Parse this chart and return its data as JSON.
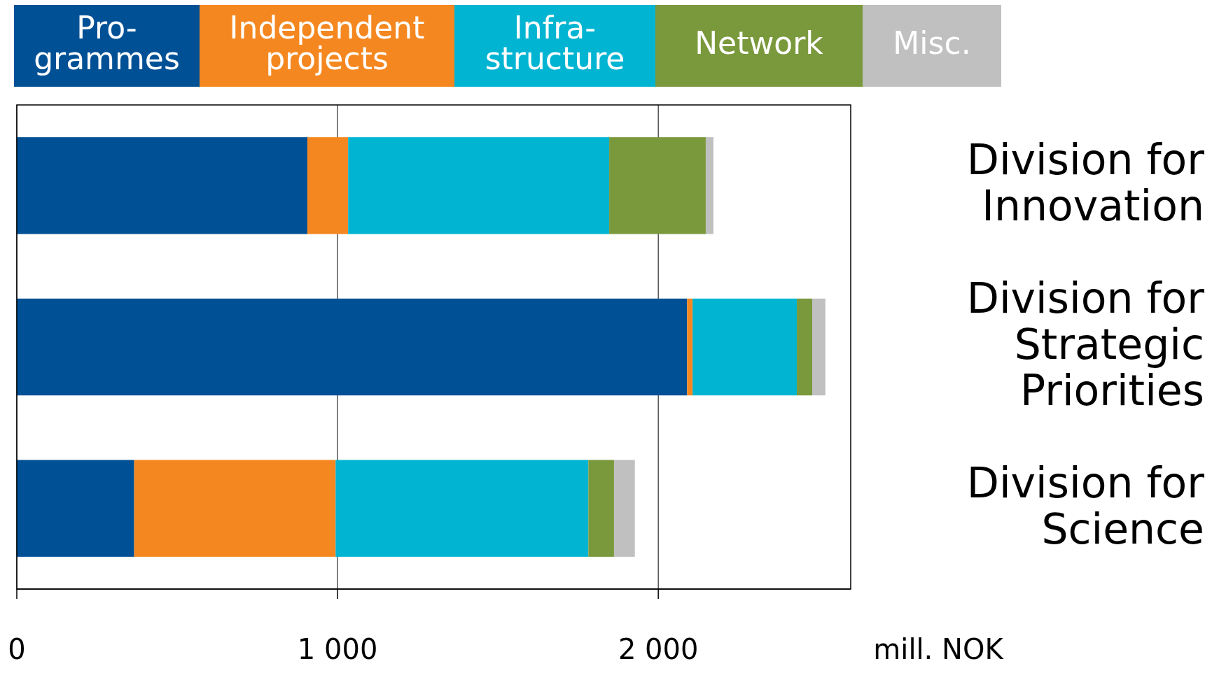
{
  "chart_data": {
    "type": "bar",
    "orientation": "horizontal",
    "stacked": true,
    "categories": [
      "Division for\nInnovation",
      "Division for\nStrategic\nPriorities",
      "Division for\nScience"
    ],
    "series": [
      {
        "name": "Pro-\ngrammes",
        "color": "#005096",
        "values": [
          906,
          2090,
          366
        ]
      },
      {
        "name": "Independent\nprojects",
        "color": "#f58720",
        "values": [
          127,
          17,
          628
        ]
      },
      {
        "name": "Infra-\nstructure",
        "color": "#00b4d2",
        "values": [
          814,
          325,
          788
        ]
      },
      {
        "name": "Network",
        "color": "#7a993c",
        "values": [
          301,
          48,
          80
        ]
      },
      {
        "name": "Misc.",
        "color": "#c0c0c0",
        "values": [
          24,
          41,
          65
        ]
      }
    ],
    "xlim": [
      0,
      2600
    ],
    "xticks": [
      0,
      {
        "value": 1000,
        "label": "1 000"
      },
      {
        "value": 2000,
        "label": "2 000"
      }
    ],
    "xlabel": "mill. NOK",
    "grid": "x",
    "legend": "top"
  }
}
